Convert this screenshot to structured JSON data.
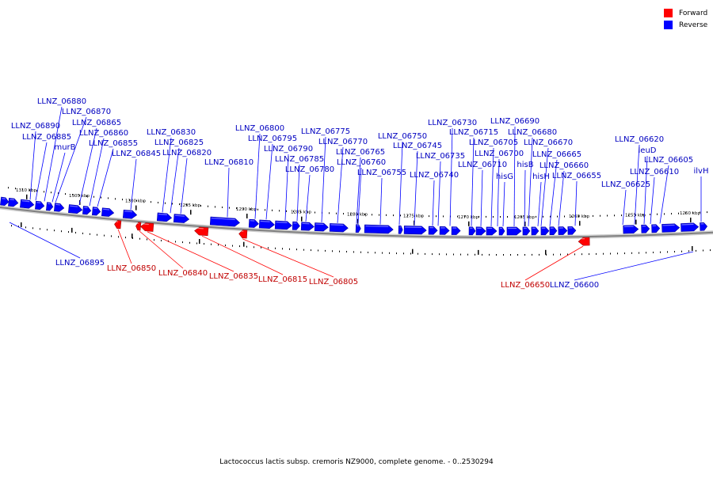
{
  "colors": {
    "forward": "#ff0000",
    "reverse": "#0000ff",
    "forward_label": "#c00000",
    "reverse_label": "#0000c0",
    "backbone": "#808080"
  },
  "legend": [
    {
      "name": "Forward",
      "color": "#ff0000"
    },
    {
      "name": "Reverse",
      "color": "#0000ff"
    }
  ],
  "caption": "Lactococcus lactis subsp. cremoris NZ9000, complete genome. - 0..2530294",
  "ticks": [
    "1310 kbp",
    "1305 kbp",
    "1300 kbp",
    "1295 kbp",
    "1290 kbp",
    "1285 kbp",
    "1280 kbp",
    "1275 kbp",
    "1270 kbp",
    "1265 kbp",
    "1260 kbp",
    "1255 kbp",
    "1250 kbp"
  ],
  "reverse_genes": [
    "LLNZ_06880",
    "LLNZ_06870",
    "LLNZ_06890",
    "LLNZ_06865",
    "LLNZ_06885",
    "LLNZ_06860",
    "murB",
    "LLNZ_06855",
    "LLNZ_06845",
    "LLNZ_06830",
    "LLNZ_06825",
    "LLNZ_06820",
    "LLNZ_06810",
    "LLNZ_06800",
    "LLNZ_06795",
    "LLNZ_06790",
    "LLNZ_06785",
    "LLNZ_06780",
    "LLNZ_06775",
    "LLNZ_06770",
    "LLNZ_06765",
    "LLNZ_06760",
    "LLNZ_06755",
    "LLNZ_06750",
    "LLNZ_06745",
    "LLNZ_06735",
    "LLNZ_06740",
    "LLNZ_06730",
    "LLNZ_06715",
    "LLNZ_06705",
    "LLNZ_06700",
    "LLNZ_06710",
    "hisG",
    "LLNZ_06690",
    "LLNZ_06680",
    "LLNZ_06670",
    "hisB",
    "LLNZ_06665",
    "hisH",
    "LLNZ_06660",
    "LLNZ_06655",
    "LLNZ_06620",
    "leuD",
    "LLNZ_06605",
    "LLNZ_06610",
    "ilvH",
    "LLNZ_06625",
    "LLNZ_06895",
    "LLNZ_06600"
  ],
  "forward_genes": [
    "LLNZ_06850",
    "LLNZ_06840",
    "LLNZ_06835",
    "LLNZ_06815",
    "LLNZ_06805",
    "LLNZ_06650"
  ]
}
